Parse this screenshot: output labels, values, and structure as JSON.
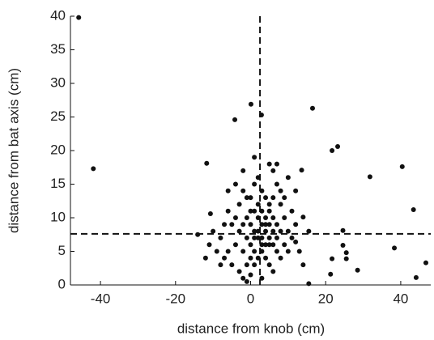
{
  "chart_data": {
    "type": "scatter",
    "xlabel": "distance from knob (cm)",
    "ylabel": "distance from bat axis (cm)",
    "xlim": [
      -48,
      48
    ],
    "ylim": [
      0,
      40
    ],
    "xticks": [
      -40,
      -20,
      0,
      20,
      40
    ],
    "yticks": [
      0,
      5,
      10,
      15,
      20,
      25,
      30,
      35,
      40
    ],
    "vline": 2.5,
    "hline": 7.6,
    "color": "#111",
    "x": [
      -45.8,
      -41.9,
      -11.7,
      -10.7,
      -14.1,
      -4.2,
      0.1,
      2.9,
      16.5,
      21.7,
      23.2,
      31.8,
      40.4,
      43.4,
      44.1,
      46.7,
      38.3,
      24.6,
      24.6,
      25.5,
      25.5,
      28.5,
      21.7,
      21.3,
      15.5,
      14,
      13.6,
      15.5,
      12,
      -6,
      -5,
      -4,
      -3,
      -2,
      -1,
      0,
      1,
      2,
      3,
      4,
      5,
      6,
      7,
      8,
      9,
      10,
      -7,
      -8,
      -9,
      -3,
      -2,
      -1,
      0,
      1,
      2,
      3,
      4,
      5,
      6,
      7,
      8,
      9,
      10,
      11,
      -4,
      -3,
      -2,
      -1,
      0,
      1,
      2,
      3,
      4,
      5,
      6,
      7,
      8,
      9,
      -5,
      -6,
      -7,
      -8,
      -10,
      -11,
      0,
      1,
      2,
      3,
      4,
      5,
      6,
      3,
      -1,
      0,
      1,
      2,
      3,
      4,
      5,
      6,
      7,
      8,
      -2,
      -1,
      0,
      1,
      2,
      3,
      4,
      5,
      6,
      -4,
      -2,
      1,
      5,
      7,
      10,
      12,
      11,
      12,
      13,
      14,
      -12,
      -6
    ],
    "y": [
      39.8,
      17.3,
      18.1,
      10.6,
      7.5,
      24.6,
      26.9,
      25.3,
      26.3,
      20,
      20.6,
      16.1,
      17.6,
      11.2,
      1.1,
      3.3,
      5.5,
      8.1,
      5.9,
      4.8,
      3.9,
      2.2,
      3.9,
      1.6,
      0.2,
      10.1,
      17.1,
      8,
      6.4,
      5,
      3,
      6,
      8,
      9,
      7,
      6,
      8,
      10,
      9,
      8,
      11,
      10,
      9,
      12,
      10,
      8,
      4,
      3,
      5,
      2,
      1,
      0.5,
      1.5,
      3,
      4,
      5,
      6,
      7,
      6,
      5,
      4,
      6,
      5,
      7,
      10,
      12,
      14,
      13,
      11,
      15,
      16,
      14,
      13,
      12,
      17,
      15,
      14,
      13,
      9,
      11,
      9,
      7,
      8,
      6,
      4,
      5,
      7,
      7,
      4,
      3,
      2,
      1,
      3,
      9,
      11,
      12,
      11,
      10,
      9,
      8,
      7,
      8,
      5,
      10,
      13,
      7,
      8,
      6,
      9,
      6,
      13,
      15,
      17,
      19,
      18,
      18,
      16,
      14,
      11,
      9,
      5,
      3,
      4,
      14
    ]
  }
}
